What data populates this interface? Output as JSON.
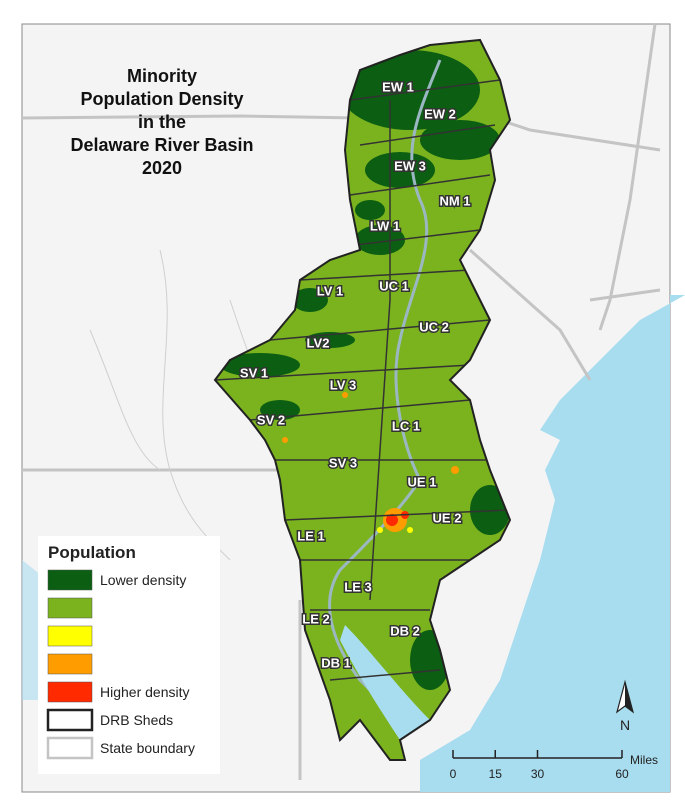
{
  "title_lines": [
    "Minority",
    "Population Density",
    "in the",
    "Delaware River Basin",
    "2020"
  ],
  "shed_labels": [
    "EW 1",
    "EW 2",
    "EW 3",
    "NM 1",
    "LW 1",
    "LV 1",
    "UC 1",
    "UC 2",
    "LV2",
    "SV 1",
    "LV 3",
    "SV 2",
    "LC 1",
    "SV 3",
    "UE 1",
    "UE 2",
    "LE 1",
    "LE 3",
    "LE 2",
    "DB 2",
    "DB 1"
  ],
  "legend": {
    "title": "Population",
    "items": [
      {
        "color": "#0b5e12",
        "label": "Lower density"
      },
      {
        "color": "#7bb31f"
      },
      {
        "color": "#ffff00"
      },
      {
        "color": "#ff9d00"
      },
      {
        "color": "#ff2a00",
        "label": "Higher density"
      },
      {
        "stroke": "#222222",
        "label": "DRB Sheds"
      },
      {
        "stroke": "#c4c4c4",
        "label": "State boundary"
      }
    ]
  },
  "scale_bar": {
    "ticks": [
      0,
      15,
      30,
      60
    ],
    "unit": "Miles"
  },
  "north": "N"
}
